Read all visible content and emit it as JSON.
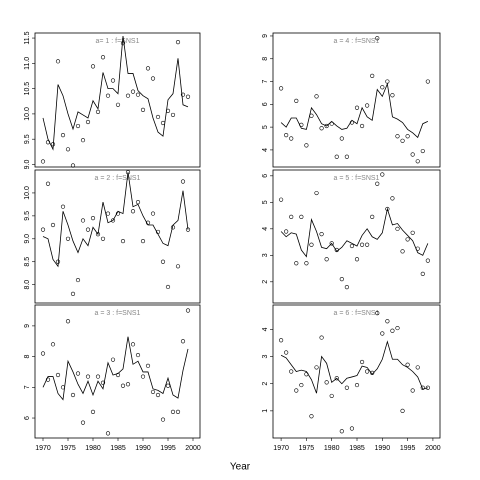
{
  "xlabel": "Year",
  "chart_data": [
    {
      "type": "scatter",
      "title": "a= 1 : f=SNS1",
      "xlim": [
        1968.4,
        2001.4
      ],
      "ylim": [
        8.95,
        11.6
      ],
      "yticks": [
        {
          "value": 9,
          "label": "9.0"
        },
        9.5,
        {
          "value": 10,
          "label": "10.0"
        },
        10.5,
        {
          "value": 11,
          "label": "11.0"
        },
        11.5
      ],
      "x": [
        1970,
        1971,
        1972,
        1973,
        1974,
        1975,
        1976,
        1977,
        1978,
        1979,
        1980,
        1981,
        1982,
        1983,
        1984,
        1985,
        1986,
        1987,
        1988,
        1989,
        1990,
        1991,
        1992,
        1993,
        1994,
        1995,
        1996,
        1997,
        1998,
        1999
      ],
      "series": [
        {
          "mode": "points",
          "color": "#000000",
          "values": [
            9.06,
            9.44,
            9.4,
            11.04,
            9.58,
            9.3,
            8.98,
            9.76,
            9.48,
            9.84,
            10.94,
            10.04,
            11.12,
            10.36,
            10.66,
            10.18,
            11.4,
            10.36,
            10.44,
            10.38,
            10.08,
            10.9,
            10.7,
            9.94,
            9.82,
            10.06,
            9.98,
            11.42,
            10.38,
            10.34
          ]
        },
        {
          "mode": "line",
          "color": "#000000",
          "values": [
            9.92,
            9.5,
            9.3,
            10.58,
            10.36,
            10.0,
            9.7,
            10.04,
            9.98,
            9.92,
            10.26,
            10.1,
            10.82,
            10.5,
            10.5,
            10.4,
            11.54,
            10.8,
            10.8,
            10.46,
            10.36,
            10.3,
            9.92,
            9.64,
            9.56,
            10.28,
            10.4,
            11.1,
            10.18,
            10.14
          ]
        }
      ]
    },
    {
      "type": "scatter",
      "title": "a = 2 : f=SNS1",
      "xlim": [
        1968.4,
        2001.4
      ],
      "ylim": [
        7.6,
        10.5
      ],
      "yticks": [
        {
          "value": 8,
          "label": "8.0"
        },
        8.5,
        {
          "value": 9,
          "label": "9.0"
        },
        9.5,
        {
          "value": 10,
          "label": "10.0"
        }
      ],
      "x": [
        1970,
        1971,
        1972,
        1973,
        1974,
        1975,
        1976,
        1977,
        1978,
        1979,
        1980,
        1981,
        1982,
        1983,
        1984,
        1985,
        1986,
        1987,
        1988,
        1989,
        1990,
        1991,
        1992,
        1993,
        1994,
        1995,
        1996,
        1997,
        1998,
        1999
      ],
      "series": [
        {
          "mode": "points",
          "color": "#000000",
          "values": [
            9.2,
            10.2,
            9.3,
            8.5,
            9.7,
            9.0,
            7.8,
            8.1,
            9.4,
            9.2,
            9.45,
            9.1,
            9.0,
            9.55,
            9.4,
            9.55,
            8.95,
            10.45,
            9.6,
            9.8,
            8.95,
            9.35,
            9.55,
            9.15,
            8.5,
            7.95,
            9.25,
            8.4,
            10.25,
            9.2
          ]
        },
        {
          "mode": "line",
          "color": "#000000",
          "values": [
            9.05,
            9.0,
            8.55,
            8.4,
            9.6,
            9.3,
            8.95,
            8.7,
            9.0,
            8.85,
            9.25,
            9.1,
            9.8,
            9.35,
            9.4,
            9.6,
            9.55,
            10.45,
            9.7,
            9.75,
            9.5,
            9.3,
            9.3,
            9.1,
            8.9,
            8.85,
            9.3,
            9.4,
            10.05,
            9.2
          ]
        }
      ]
    },
    {
      "type": "scatter",
      "title": "a = 3 : f=SNS1",
      "xlim": [
        1968.4,
        2001.4
      ],
      "ylim": [
        5.35,
        9.68
      ],
      "yticks": [
        6,
        7,
        8,
        9
      ],
      "xticks": [
        1970,
        1975,
        1980,
        1985,
        1990,
        1995,
        2000
      ],
      "x": [
        1970,
        1971,
        1972,
        1973,
        1974,
        1975,
        1976,
        1977,
        1978,
        1979,
        1980,
        1981,
        1982,
        1983,
        1984,
        1985,
        1986,
        1987,
        1988,
        1989,
        1990,
        1991,
        1992,
        1993,
        1994,
        1995,
        1996,
        1997,
        1998,
        1999
      ],
      "series": [
        {
          "mode": "points",
          "color": "#000000",
          "values": [
            8.1,
            7.25,
            8.4,
            7.4,
            7.0,
            9.15,
            6.75,
            7.45,
            5.85,
            7.35,
            6.2,
            7.35,
            7.15,
            5.5,
            7.9,
            7.4,
            7.05,
            7.1,
            8.4,
            8.05,
            7.35,
            7.7,
            6.85,
            6.75,
            5.95,
            7.05,
            6.2,
            6.2,
            8.5,
            9.5
          ]
        },
        {
          "mode": "line",
          "color": "#000000",
          "values": [
            7.0,
            7.35,
            7.35,
            6.8,
            6.6,
            7.85,
            7.5,
            7.1,
            6.8,
            7.2,
            6.75,
            7.2,
            6.95,
            7.8,
            7.4,
            7.45,
            7.6,
            8.65,
            7.75,
            7.85,
            7.5,
            7.5,
            6.95,
            6.9,
            6.8,
            7.3,
            6.75,
            6.65,
            7.55,
            8.25
          ]
        }
      ]
    },
    {
      "type": "scatter",
      "title": "a = 4 : f=SNS1",
      "xlim": [
        1968.4,
        2001.4
      ],
      "ylim": [
        3.25,
        9.13
      ],
      "yticks": [
        4,
        5,
        6,
        7,
        8,
        9
      ],
      "x": [
        1970,
        1971,
        1972,
        1973,
        1974,
        1975,
        1976,
        1977,
        1978,
        1979,
        1980,
        1981,
        1982,
        1983,
        1984,
        1985,
        1986,
        1987,
        1988,
        1989,
        1990,
        1991,
        1992,
        1993,
        1994,
        1995,
        1996,
        1997,
        1998,
        1999
      ],
      "series": [
        {
          "mode": "points",
          "color": "#000000",
          "values": [
            6.7,
            4.65,
            4.5,
            6.15,
            5.1,
            4.2,
            5.5,
            6.35,
            4.95,
            5.05,
            5.15,
            3.7,
            4.5,
            3.7,
            5.2,
            5.85,
            5.05,
            5.95,
            7.25,
            8.9,
            6.75,
            7.0,
            6.4,
            4.6,
            4.4,
            4.6,
            3.8,
            3.5,
            3.95,
            7.0
          ]
        },
        {
          "mode": "line",
          "color": "#000000",
          "values": [
            5.2,
            5.0,
            5.4,
            5.4,
            4.95,
            4.9,
            5.85,
            5.55,
            5.15,
            5.05,
            5.25,
            5.05,
            4.9,
            4.95,
            5.3,
            5.15,
            5.85,
            5.45,
            5.3,
            6.65,
            6.35,
            6.9,
            5.45,
            5.35,
            5.2,
            4.9,
            4.75,
            4.55,
            5.15,
            5.25
          ]
        }
      ]
    },
    {
      "type": "scatter",
      "title": "a = 5 : f=SNS1",
      "xlim": [
        1968.4,
        2001.4
      ],
      "ylim": [
        1.2,
        6.22
      ],
      "yticks": [
        2,
        3,
        4,
        5,
        6
      ],
      "x": [
        1970,
        1971,
        1972,
        1973,
        1974,
        1975,
        1976,
        1977,
        1978,
        1979,
        1980,
        1981,
        1982,
        1983,
        1984,
        1985,
        1986,
        1987,
        1988,
        1989,
        1990,
        1991,
        1992,
        1993,
        1994,
        1995,
        1996,
        1997,
        1998,
        1999
      ],
      "series": [
        {
          "mode": "points",
          "color": "#000000",
          "values": [
            5.1,
            3.9,
            4.45,
            2.7,
            4.45,
            2.7,
            3.4,
            5.35,
            3.8,
            2.85,
            3.45,
            3.2,
            2.1,
            1.8,
            3.35,
            2.85,
            3.4,
            3.4,
            4.45,
            5.7,
            6.05,
            4.75,
            5.15,
            4.0,
            3.15,
            3.6,
            3.85,
            3.25,
            2.3,
            2.8
          ]
        },
        {
          "mode": "line",
          "color": "#000000",
          "values": [
            3.9,
            3.7,
            3.85,
            3.8,
            3.2,
            2.95,
            4.35,
            3.9,
            3.3,
            3.25,
            3.45,
            3.15,
            3.3,
            3.55,
            3.45,
            3.35,
            3.75,
            4.0,
            3.7,
            3.6,
            3.85,
            4.75,
            4.15,
            4.2,
            3.95,
            3.75,
            3.55,
            3.1,
            3.0,
            3.45
          ]
        }
      ]
    },
    {
      "type": "scatter",
      "title": "a = 6 : f=SNS1",
      "xlim": [
        1968.4,
        2001.4
      ],
      "ylim": [
        0,
        4.9
      ],
      "yticks": [
        1,
        2,
        3,
        4
      ],
      "xticks": [
        1970,
        1975,
        1980,
        1985,
        1990,
        1995,
        2000
      ],
      "x": [
        1970,
        1971,
        1972,
        1973,
        1974,
        1975,
        1976,
        1977,
        1978,
        1979,
        1980,
        1981,
        1982,
        1983,
        1984,
        1985,
        1986,
        1987,
        1988,
        1989,
        1990,
        1991,
        1992,
        1993,
        1994,
        1995,
        1996,
        1997,
        1998,
        1999
      ],
      "series": [
        {
          "mode": "points",
          "color": "#000000",
          "values": [
            3.6,
            3.15,
            2.45,
            1.75,
            1.95,
            2.35,
            0.8,
            2.6,
            3.7,
            2.05,
            1.55,
            2.2,
            0.25,
            1.85,
            0.35,
            1.95,
            2.8,
            2.45,
            2.4,
            4.6,
            3.85,
            4.3,
            3.95,
            4.05,
            1.0,
            2.7,
            1.75,
            2.6,
            1.85,
            1.85
          ]
        },
        {
          "mode": "line",
          "color": "#000000",
          "values": [
            3.05,
            2.95,
            2.7,
            2.45,
            2.5,
            2.45,
            2.15,
            1.65,
            3.0,
            2.75,
            2.05,
            2.2,
            2.0,
            2.2,
            2.25,
            2.3,
            2.65,
            2.6,
            2.35,
            2.55,
            2.9,
            3.55,
            2.9,
            2.9,
            2.7,
            2.6,
            2.45,
            2.25,
            1.8,
            1.85
          ]
        }
      ]
    }
  ]
}
